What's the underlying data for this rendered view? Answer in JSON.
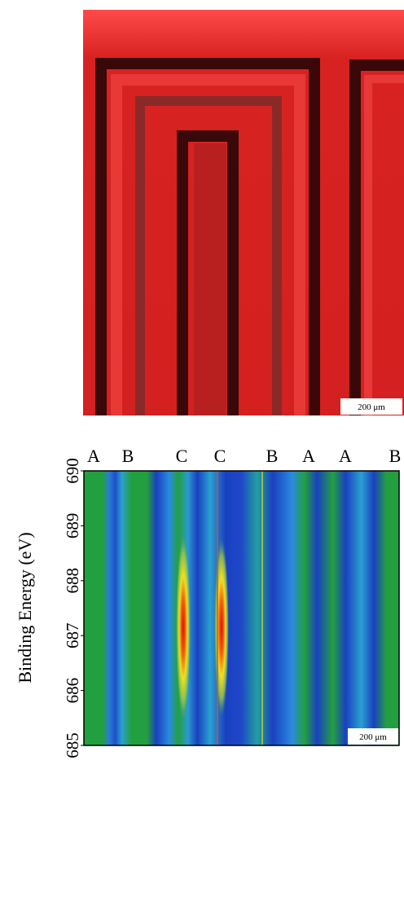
{
  "panel_a": {
    "scale_bar": "200 μm"
  },
  "panel_b": {
    "column_labels": [
      "A",
      "B",
      "C",
      "C",
      "B",
      "A",
      "A",
      "B"
    ],
    "y_label": "Binding Energy (eV)",
    "ylim": [
      685,
      690
    ],
    "yticks": [
      685,
      686,
      687,
      688,
      689,
      690
    ],
    "scale_bar": "200 μm"
  }
}
